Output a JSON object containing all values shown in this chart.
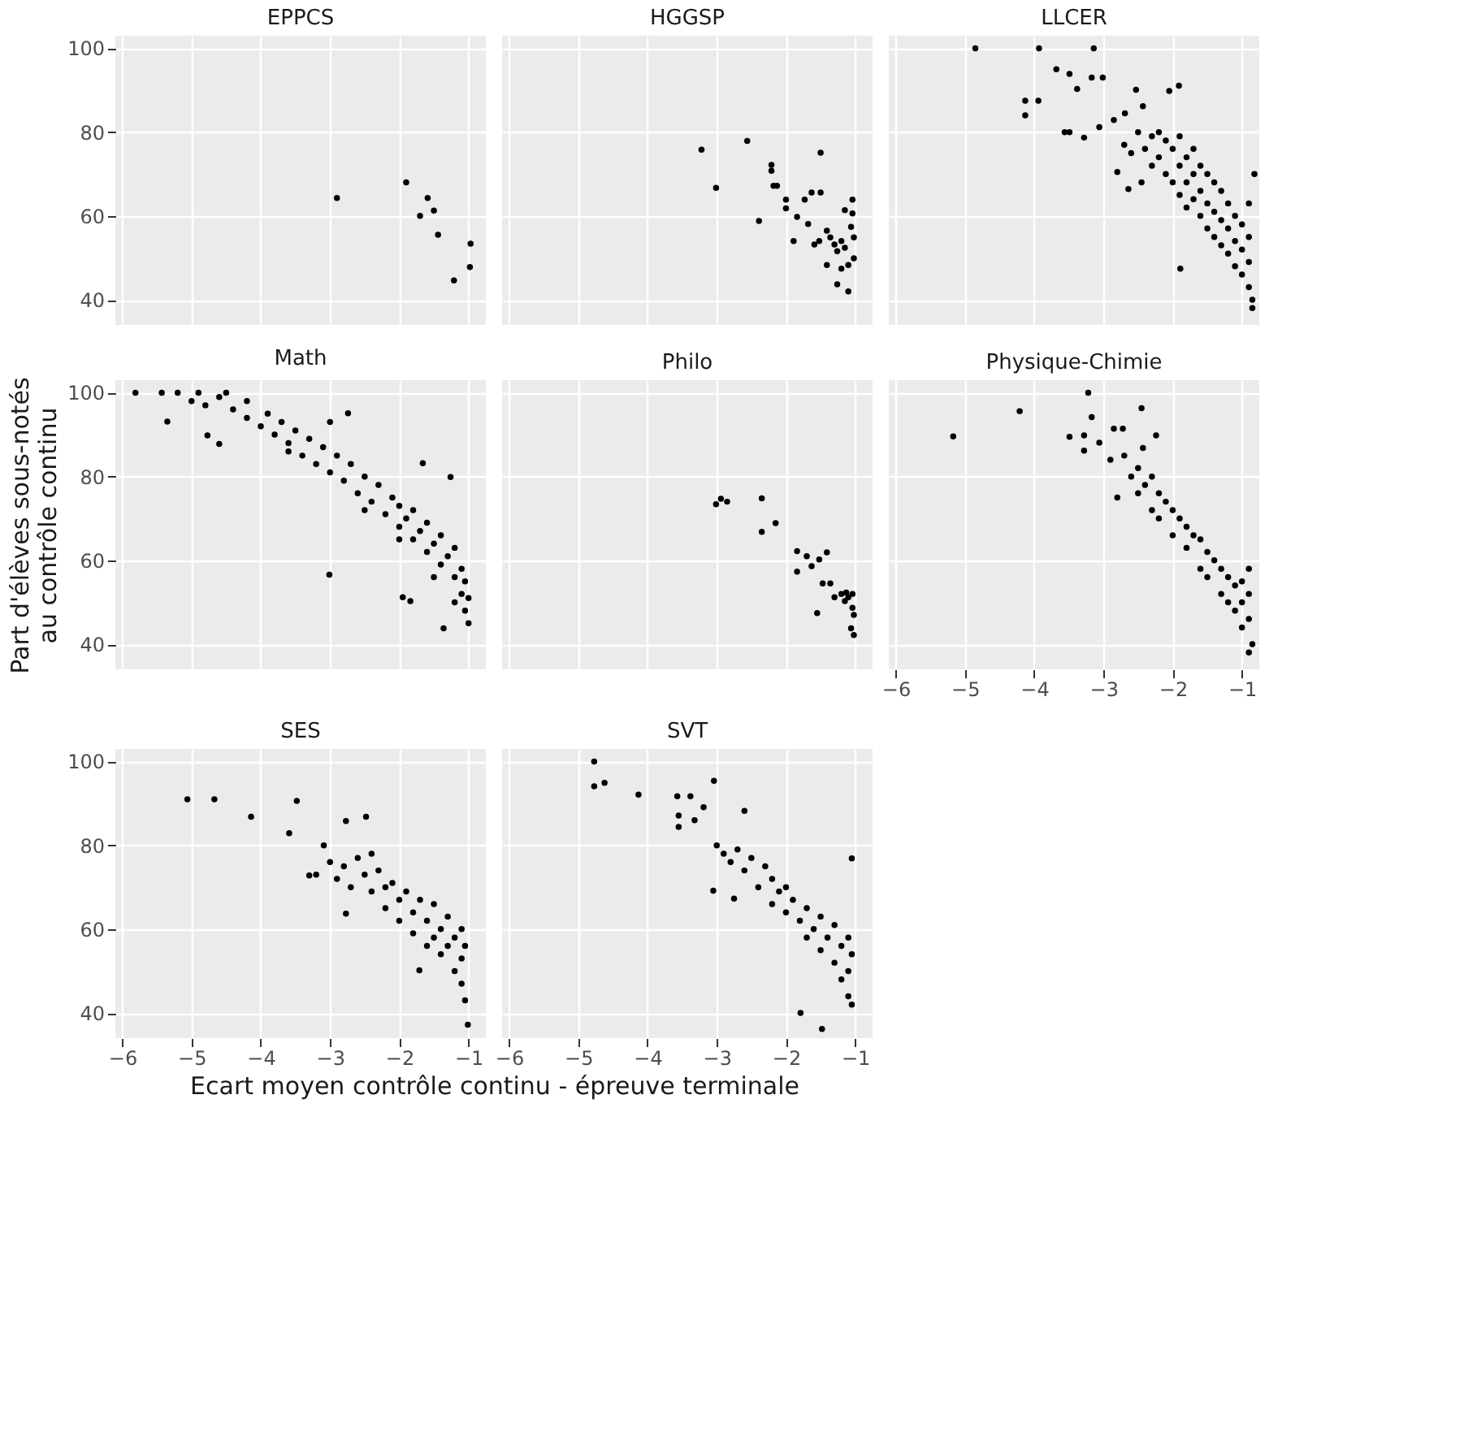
{
  "chart_data": [
    {
      "type": "scatter",
      "title": "EPPCS",
      "tick_labels": "y",
      "grid": true,
      "marker": "circle",
      "xlim": [
        -6.1,
        -0.75
      ],
      "ylim": [
        34,
        103
      ],
      "xticks": [
        -6,
        -5,
        -4,
        -3,
        -2,
        -1
      ],
      "yticks": [
        40,
        60,
        80,
        100
      ],
      "series": [
        {
          "color": "#000000",
          "x": [
            -2.9,
            -1.9,
            -1.59,
            -1.5,
            -1.7,
            -1.44,
            -0.97,
            -0.98,
            -1.21
          ],
          "values": [
            64.3,
            68,
            64.3,
            61.3,
            60,
            55.5,
            53.4,
            47.8,
            44.6
          ]
        }
      ]
    },
    {
      "type": "scatter",
      "title": "HGGSP",
      "tick_labels": false,
      "grid": true,
      "marker": "circle",
      "xlim": [
        -6.1,
        -0.75
      ],
      "ylim": [
        34,
        103
      ],
      "xticks": [
        -6,
        -5,
        -4,
        -3,
        -2,
        -1
      ],
      "yticks": [
        40,
        60,
        80,
        100
      ],
      "series": [
        {
          "color": "#000000",
          "x": [
            -3.22,
            -3.01,
            -2.56,
            -2.39,
            -2.21,
            -2.21,
            -2.18,
            -2.13,
            -2.0,
            -2.0,
            -1.84,
            -1.89,
            -1.73,
            -1.63,
            -1.5,
            -1.5,
            -1.68,
            -1.59,
            -1.41,
            -1.36,
            -1.3,
            -1.26,
            -1.2,
            -1.15,
            -1.15,
            -1.1,
            -1.04,
            -1.04,
            -1.02,
            -1.02,
            -1.2,
            -1.26,
            -1.1,
            -1.41,
            -1.52,
            -1.06
          ],
          "values": [
            75.8,
            66.7,
            77.9,
            58.8,
            72.2,
            70.8,
            67.2,
            67.2,
            63.9,
            61.8,
            59.8,
            54,
            63.9,
            65.6,
            75.1,
            65.6,
            58.1,
            53.2,
            56.5,
            54.9,
            53.2,
            51.6,
            54,
            61.4,
            52.4,
            48.3,
            63.9,
            60.6,
            54.9,
            49.9,
            47.4,
            43.7,
            42,
            48.3,
            54,
            57.4
          ]
        }
      ]
    },
    {
      "type": "scatter",
      "title": "LLCER",
      "tick_labels": false,
      "grid": true,
      "marker": "circle",
      "xlim": [
        -6.1,
        -0.75
      ],
      "ylim": [
        34,
        103
      ],
      "xticks": [
        -6,
        -5,
        -4,
        -3,
        -2,
        -1
      ],
      "yticks": [
        40,
        60,
        80,
        100
      ],
      "series": [
        {
          "color": "#000000",
          "x": [
            -4.85,
            -3.93,
            -3.14,
            -4.13,
            -3.94,
            -4.13,
            -3.68,
            -3.49,
            -3.56,
            -3.49,
            -3.17,
            -3.01,
            -3.38,
            -2.53,
            -1.91,
            -2.05,
            -3.28,
            -3.06,
            -2.85,
            -2.69,
            -2.43,
            -2.8,
            -2.64,
            -1.89,
            -2.5,
            -2.4,
            -2.3,
            -2.3,
            -2.2,
            -2.2,
            -2.1,
            -2.1,
            -2.0,
            -2.0,
            -1.9,
            -1.9,
            -1.9,
            -1.8,
            -1.8,
            -1.8,
            -1.7,
            -1.7,
            -1.7,
            -1.6,
            -1.6,
            -1.6,
            -1.5,
            -1.5,
            -1.5,
            -1.4,
            -1.4,
            -1.4,
            -1.3,
            -1.3,
            -1.3,
            -1.2,
            -1.2,
            -1.2,
            -1.1,
            -1.1,
            -1.1,
            -1.0,
            -1.0,
            -1.0,
            -0.9,
            -0.9,
            -0.9,
            -0.85,
            -0.85,
            -0.82,
            -0.9,
            -2.6,
            -2.7,
            -2.45
          ],
          "values": [
            100,
            100,
            100,
            87.5,
            87.5,
            84,
            95,
            93.9,
            80,
            80,
            93,
            93,
            90.3,
            90.1,
            91.1,
            89.8,
            78.7,
            81.2,
            82.9,
            84.5,
            86.2,
            70.5,
            66.4,
            47.4,
            80,
            76,
            79,
            72,
            80,
            74,
            78,
            70,
            76,
            68,
            79,
            72,
            65,
            74,
            68,
            62,
            76,
            70,
            64,
            72,
            66,
            60,
            70,
            63,
            57,
            68,
            61,
            55,
            66,
            59,
            53,
            63,
            57,
            51,
            60,
            54,
            48,
            58,
            52,
            46,
            55,
            49,
            43,
            40,
            38,
            70,
            63,
            75,
            77,
            68
          ]
        }
      ]
    },
    {
      "type": "scatter",
      "title": "Math",
      "ylabel": "Part d'élèves sous-notés\nau contrôle continu",
      "tick_labels": "y",
      "grid": true,
      "marker": "circle",
      "xlim": [
        -6.1,
        -0.75
      ],
      "ylim": [
        34,
        103
      ],
      "xticks": [
        -6,
        -5,
        -4,
        -3,
        -2,
        -1
      ],
      "yticks": [
        40,
        60,
        80,
        100
      ],
      "series": [
        {
          "color": "#000000",
          "x": [
            -5.81,
            -5.43,
            -5.2,
            -4.9,
            -5.35,
            -4.77,
            -4.6,
            -3.01,
            -2.74,
            -1.95,
            -1.84,
            -1.66,
            -1.26,
            -1.36,
            -5.0,
            -4.8,
            -4.6,
            -4.4,
            -4.2,
            -4.2,
            -4.0,
            -3.9,
            -3.8,
            -3.7,
            -3.6,
            -3.5,
            -3.4,
            -3.3,
            -3.2,
            -3.1,
            -3.0,
            -2.9,
            -2.8,
            -2.7,
            -2.6,
            -2.5,
            -2.4,
            -2.3,
            -2.2,
            -2.1,
            -2.0,
            -2.0,
            -1.9,
            -1.8,
            -1.8,
            -1.7,
            -1.6,
            -1.6,
            -1.5,
            -1.4,
            -1.4,
            -1.3,
            -1.2,
            -1.2,
            -1.1,
            -1.1,
            -1.05,
            -1.05,
            -1.0,
            -1.0,
            -4.5,
            -3.0,
            -3.6,
            -2.5,
            -2.0,
            -1.5,
            -1.2
          ],
          "values": [
            100,
            100,
            100,
            100,
            93.1,
            89.8,
            87.8,
            56.6,
            95.1,
            51.2,
            50.3,
            83.2,
            79.9,
            43.8,
            98,
            97,
            99,
            96,
            94,
            98,
            92,
            95,
            90,
            93,
            88,
            91,
            85,
            89,
            83,
            87,
            81,
            85,
            79,
            83,
            76,
            80,
            74,
            78,
            71,
            75,
            68,
            73,
            70,
            65,
            72,
            67,
            62,
            69,
            64,
            59,
            66,
            61,
            56,
            63,
            58,
            52,
            48,
            55,
            45,
            51,
            100,
            93,
            86,
            72,
            65,
            56,
            50
          ]
        }
      ]
    },
    {
      "type": "scatter",
      "title": "Philo",
      "tick_labels": false,
      "grid": true,
      "marker": "circle",
      "xlim": [
        -6.1,
        -0.75
      ],
      "ylim": [
        34,
        103
      ],
      "xticks": [
        -6,
        -5,
        -4,
        -3,
        -2,
        -1
      ],
      "yticks": [
        40,
        60,
        80,
        100
      ],
      "series": [
        {
          "color": "#000000",
          "x": [
            -3.01,
            -2.94,
            -2.85,
            -2.35,
            -2.35,
            -2.15,
            -1.84,
            -1.7,
            -1.63,
            -1.84,
            -1.41,
            -1.52,
            -1.47,
            -1.36,
            -1.55,
            -1.3,
            -1.2,
            -1.15,
            -1.1,
            -1.04,
            -1.04,
            -1.02,
            -1.06,
            -1.02,
            -1.13
          ],
          "values": [
            73.4,
            74.7,
            74,
            74.8,
            66.8,
            68.9,
            62.2,
            61,
            58.6,
            57.3,
            61.9,
            60.2,
            54.5,
            54.5,
            47.4,
            51.2,
            52,
            50.3,
            51.2,
            52,
            48.7,
            47,
            43.8,
            42.2,
            52.3
          ]
        }
      ]
    },
    {
      "type": "scatter",
      "title": "Physique-Chimie",
      "tick_labels": "x",
      "grid": true,
      "marker": "circle",
      "xlim": [
        -6.1,
        -0.75
      ],
      "ylim": [
        34,
        103
      ],
      "xticks": [
        -6,
        -5,
        -4,
        -3,
        -2,
        -1
      ],
      "yticks": [
        40,
        60,
        80,
        100
      ],
      "series": [
        {
          "color": "#000000",
          "x": [
            -5.17,
            -4.21,
            -3.22,
            -3.17,
            -2.45,
            -3.49,
            -3.28,
            -3.28,
            -3.06,
            -2.85,
            -2.72,
            -2.24,
            -2.8,
            -2.43,
            -2.9,
            -2.7,
            -2.6,
            -2.5,
            -2.5,
            -2.4,
            -2.3,
            -2.3,
            -2.2,
            -2.2,
            -2.1,
            -2.0,
            -2.0,
            -1.9,
            -1.8,
            -1.8,
            -1.7,
            -1.6,
            -1.6,
            -1.5,
            -1.5,
            -1.4,
            -1.3,
            -1.3,
            -1.2,
            -1.2,
            -1.1,
            -1.1,
            -1.0,
            -1.0,
            -1.0,
            -0.9,
            -0.9,
            -0.9,
            -0.85,
            -0.9
          ],
          "values": [
            89.6,
            95.6,
            100,
            94.2,
            96.3,
            89.5,
            89.8,
            86.2,
            88.1,
            91.4,
            91.4,
            89.8,
            75,
            86.8,
            84,
            85,
            80,
            82,
            76,
            78,
            80,
            72,
            76,
            70,
            74,
            72,
            66,
            70,
            68,
            63,
            66,
            65,
            58,
            62,
            56,
            60,
            58,
            52,
            56,
            50,
            54,
            48,
            55,
            50,
            44,
            58,
            52,
            46,
            40,
            38
          ]
        }
      ]
    },
    {
      "type": "scatter",
      "title": "SES",
      "xlabel": "Ecart moyen contrôle continu - épreuve terminale",
      "grid": true,
      "marker": "circle",
      "xlim": [
        -6.1,
        -0.75
      ],
      "ylim": [
        34,
        103
      ],
      "xticks": [
        -6,
        -5,
        -4,
        -3,
        -2,
        -1
      ],
      "yticks": [
        40,
        60,
        80,
        100
      ],
      "series": [
        {
          "color": "#000000",
          "x": [
            -5.06,
            -4.67,
            -4.14,
            -3.48,
            -3.59,
            -2.77,
            -2.48,
            -2.77,
            -3.3,
            -3.09,
            -1.01,
            -1.71,
            -3.2,
            -3.0,
            -2.9,
            -2.8,
            -2.7,
            -2.6,
            -2.5,
            -2.4,
            -2.4,
            -2.3,
            -2.2,
            -2.2,
            -2.1,
            -2.0,
            -2.0,
            -1.9,
            -1.8,
            -1.8,
            -1.7,
            -1.6,
            -1.6,
            -1.5,
            -1.5,
            -1.4,
            -1.4,
            -1.3,
            -1.3,
            -1.2,
            -1.2,
            -1.1,
            -1.1,
            -1.1,
            -1.05,
            -1.05
          ],
          "values": [
            91,
            91,
            86.8,
            90.6,
            82.9,
            85.8,
            86.8,
            63.7,
            72.8,
            80,
            37.2,
            50.2,
            73,
            76,
            72,
            75,
            70,
            77,
            73,
            78,
            69,
            74,
            70,
            65,
            71,
            67,
            62,
            69,
            64,
            59,
            67,
            62,
            56,
            66,
            58,
            60,
            54,
            63,
            56,
            58,
            50,
            60,
            53,
            47,
            56,
            43
          ]
        }
      ]
    },
    {
      "type": "scatter",
      "title": "SVT",
      "tick_labels": "x",
      "grid": true,
      "marker": "circle",
      "xlim": [
        -6.1,
        -0.75
      ],
      "ylim": [
        34,
        103
      ],
      "xticks": [
        -6,
        -5,
        -4,
        -3,
        -2,
        -1
      ],
      "yticks": [
        40,
        60,
        80,
        100
      ],
      "series": [
        {
          "color": "#000000",
          "x": [
            -4.77,
            -4.77,
            -4.62,
            -4.13,
            -3.57,
            -3.38,
            -3.04,
            -2.6,
            -3.55,
            -3.55,
            -3.32,
            -3.19,
            -3.05,
            -2.75,
            -1.05,
            -1.79,
            -1.48,
            -3.0,
            -2.9,
            -2.8,
            -2.7,
            -2.6,
            -2.5,
            -2.4,
            -2.3,
            -2.2,
            -2.2,
            -2.1,
            -2.0,
            -2.0,
            -1.9,
            -1.8,
            -1.7,
            -1.7,
            -1.6,
            -1.5,
            -1.5,
            -1.4,
            -1.3,
            -1.3,
            -1.2,
            -1.2,
            -1.1,
            -1.1,
            -1.1,
            -1.05,
            -1.05
          ],
          "values": [
            100,
            94.1,
            94.9,
            92.1,
            91.7,
            91.7,
            95.4,
            88.2,
            87.1,
            84.4,
            86,
            89.1,
            69.2,
            67.3,
            76.9,
            40,
            36.2,
            80,
            78,
            76,
            79,
            74,
            77,
            70,
            75,
            66,
            72,
            69,
            64,
            70,
            67,
            62,
            65,
            58,
            60,
            63,
            55,
            58,
            61,
            52,
            56,
            48,
            58,
            50,
            44,
            54,
            42
          ]
        }
      ]
    }
  ]
}
